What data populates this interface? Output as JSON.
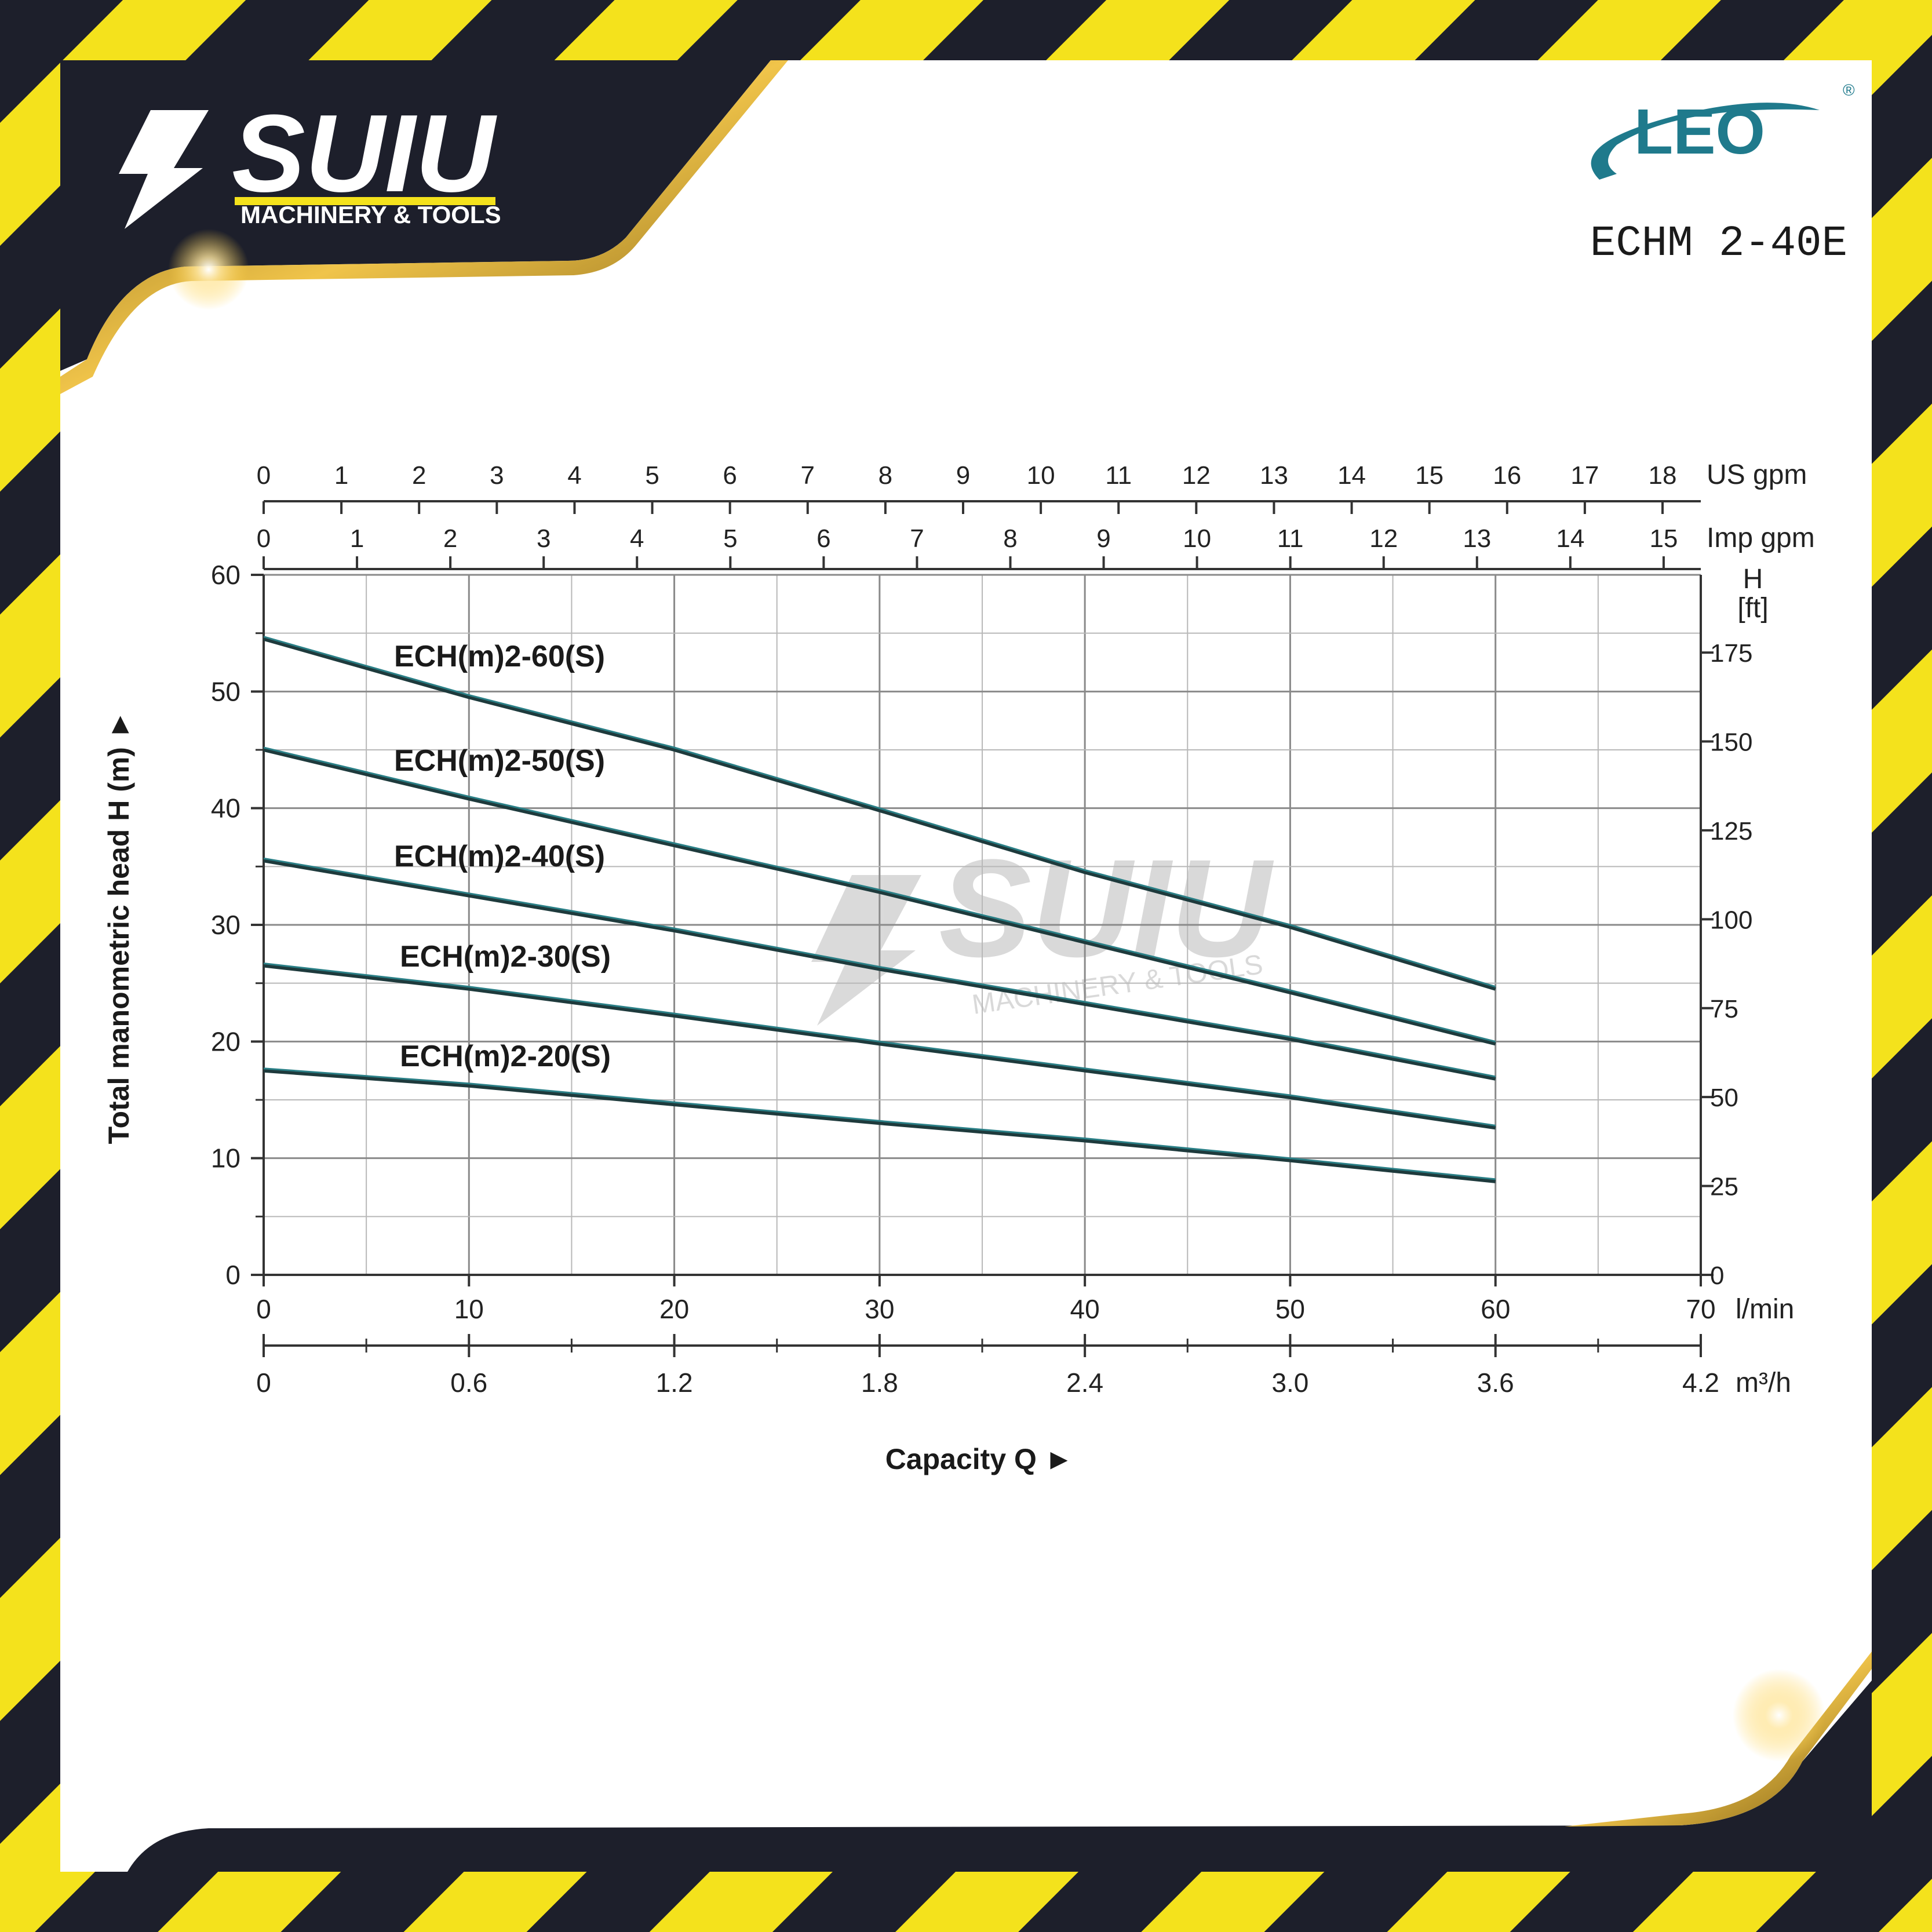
{
  "brand": {
    "logo_main": "SUIU",
    "logo_sub": "MACHINERY & TOOLS",
    "partner_logo": "LEO",
    "registered_mark": "®",
    "model": "ECHM 2-40E"
  },
  "watermark": {
    "main": "SUIU",
    "sub": "MACHINERY & TOOLS"
  },
  "colors": {
    "hazard_yellow": "#f4e21c",
    "hazard_dark": "#1d1f2b",
    "gold": "#c99a22",
    "leo_blue": "#1f7a8c",
    "curve": "#2a7f86"
  },
  "chart_data": {
    "type": "line",
    "y_axis": {
      "label": "Total manometric head H (m)",
      "arrow": "►",
      "range": [
        0,
        60
      ],
      "ticks": [
        "0",
        "10",
        "20",
        "30",
        "40",
        "50",
        "60"
      ]
    },
    "y_axis_right": {
      "unit_top": "H",
      "unit_bottom": "[ft]",
      "ticks": [
        {
          "label": "0",
          "value": 0
        },
        {
          "label": "25",
          "value": 25
        },
        {
          "label": "50",
          "value": 50
        },
        {
          "label": "75",
          "value": 75
        },
        {
          "label": "100",
          "value": 100
        },
        {
          "label": "125",
          "value": 125
        },
        {
          "label": "150",
          "value": 150
        },
        {
          "label": "175",
          "value": 175
        }
      ]
    },
    "x_axis": {
      "label": "Capacity Q",
      "arrow": "►",
      "unit": "l/min",
      "range": [
        0,
        70
      ],
      "ticks": [
        "0",
        "10",
        "20",
        "30",
        "40",
        "50",
        "60",
        "70"
      ]
    },
    "x_axis_m3h": {
      "unit": "m³/h",
      "ticks": [
        "0",
        "0.6",
        "1.2",
        "1.8",
        "2.4",
        "3.0",
        "3.6",
        "4.2"
      ]
    },
    "x_axis_us_gpm": {
      "unit": "US gpm",
      "ticks": [
        "0",
        "1",
        "2",
        "3",
        "4",
        "5",
        "6",
        "7",
        "8",
        "9",
        "10",
        "11",
        "12",
        "13",
        "14",
        "15",
        "16",
        "17",
        "18"
      ]
    },
    "x_axis_imp_gpm": {
      "unit": "Imp gpm",
      "ticks": [
        "0",
        "1",
        "2",
        "3",
        "4",
        "5",
        "6",
        "7",
        "8",
        "9",
        "10",
        "11",
        "12",
        "13",
        "14",
        "15"
      ]
    },
    "grid": true,
    "series": [
      {
        "name": "ECH(m)2-60(S)",
        "x": [
          0,
          10,
          20,
          30,
          40,
          50,
          60
        ],
        "y": [
          54.5,
          49.5,
          45,
          39.8,
          34.5,
          29.8,
          24.5
        ]
      },
      {
        "name": "ECH(m)2-50(S)",
        "x": [
          0,
          10,
          20,
          30,
          40,
          50,
          60
        ],
        "y": [
          45,
          40.8,
          36.8,
          32.8,
          28.5,
          24.2,
          19.8
        ]
      },
      {
        "name": "ECH(m)2-40(S)",
        "x": [
          0,
          10,
          20,
          30,
          40,
          50,
          60
        ],
        "y": [
          35.5,
          32.5,
          29.5,
          26.2,
          23.2,
          20.2,
          16.8
        ]
      },
      {
        "name": "ECH(m)2-30(S)",
        "x": [
          0,
          10,
          20,
          30,
          40,
          50,
          60
        ],
        "y": [
          26.5,
          24.5,
          22.2,
          19.8,
          17.5,
          15.2,
          12.6
        ]
      },
      {
        "name": "ECH(m)2-20(S)",
        "x": [
          0,
          10,
          20,
          30,
          40,
          50,
          60
        ],
        "y": [
          17.5,
          16.2,
          14.6,
          13,
          11.5,
          9.8,
          8
        ]
      }
    ]
  }
}
